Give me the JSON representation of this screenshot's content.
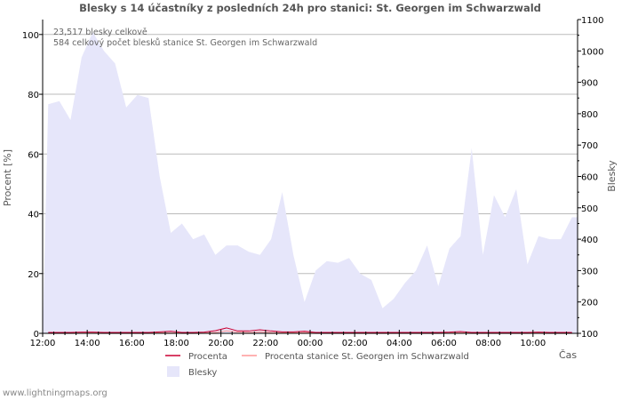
{
  "chart_data": {
    "type": "area",
    "title": "Blesky s 14 účastníky z posledních 24h pro stanici: St. Georgen im Schwarzwald",
    "ylabel_left": "Procent   [%]",
    "ylabel_right": "Blesky",
    "xlabel": "Čas",
    "ylim_left": [
      0,
      105
    ],
    "ylim_right": [
      100,
      1100
    ],
    "y_ticks_left": [
      0,
      20,
      40,
      60,
      80,
      100
    ],
    "y_ticks_right": [
      100,
      200,
      300,
      400,
      500,
      600,
      700,
      800,
      900,
      1000,
      1100
    ],
    "x_tick_labels": [
      "12:00",
      "14:00",
      "16:00",
      "18:00",
      "20:00",
      "22:00",
      "00:00",
      "02:00",
      "04:00",
      "06:00",
      "08:00",
      "10:00"
    ],
    "x_count": 48,
    "annotations": [
      "23,517 blesky celkově",
      "584 celkový počet blesků stanice St. Georgen im Schwarzwald"
    ],
    "legend": {
      "procenta": "Procenta",
      "procenta_station": "Procenta stanice St. Georgen im Schwarzwald",
      "blesky": "Blesky"
    },
    "colors": {
      "area": "#e6e6fa",
      "procenta": "#cc0033",
      "procenta_station": "#ff9999",
      "grid": "#bbbbbb",
      "axis": "#000000"
    },
    "series": [
      {
        "name": "Blesky",
        "axis": "right",
        "values": [
          830,
          840,
          780,
          980,
          1060,
          1000,
          960,
          820,
          860,
          850,
          600,
          420,
          450,
          400,
          415,
          350,
          380,
          380,
          360,
          350,
          400,
          550,
          350,
          200,
          300,
          330,
          325,
          340,
          290,
          270,
          180,
          210,
          260,
          300,
          380,
          250,
          370,
          410,
          690,
          350,
          540,
          470,
          560,
          320,
          410,
          400,
          400,
          470
        ]
      },
      {
        "name": "Procenta",
        "axis": "left",
        "values": [
          0.3,
          0.3,
          0.3,
          0.4,
          0.4,
          0.3,
          0.3,
          0.3,
          0.3,
          0.3,
          0.5,
          0.7,
          0.3,
          0.3,
          0.4,
          0.9,
          1.8,
          0.8,
          0.8,
          1.2,
          0.8,
          0.5,
          0.5,
          0.7,
          0.3,
          0.3,
          0.3,
          0.3,
          0.3,
          0.3,
          0.3,
          0.3,
          0.3,
          0.3,
          0.3,
          0.3,
          0.4,
          0.6,
          0.3,
          0.3,
          0.3,
          0.3,
          0.3,
          0.3,
          0.4,
          0.3,
          0.3,
          0.3
        ]
      },
      {
        "name": "Procenta stanice St. Georgen im Schwarzwald",
        "axis": "left",
        "values": [
          0.1,
          0.1,
          0.1,
          0.1,
          0.1,
          0.1,
          0.1,
          0.1,
          0.1,
          0.1,
          0.2,
          0.2,
          0.1,
          0.1,
          0.1,
          0.3,
          0.8,
          0.4,
          0.3,
          0.5,
          0.3,
          0.2,
          0.2,
          0.3,
          0.1,
          0.1,
          0.1,
          0.1,
          0.1,
          0.1,
          0.1,
          0.1,
          0.1,
          0.1,
          0.1,
          0.1,
          0.1,
          0.2,
          0.1,
          0.1,
          0.1,
          0.1,
          0.1,
          0.1,
          0.1,
          0.1,
          0.1,
          0.1
        ]
      }
    ]
  },
  "footer": "www.lightningmaps.org"
}
